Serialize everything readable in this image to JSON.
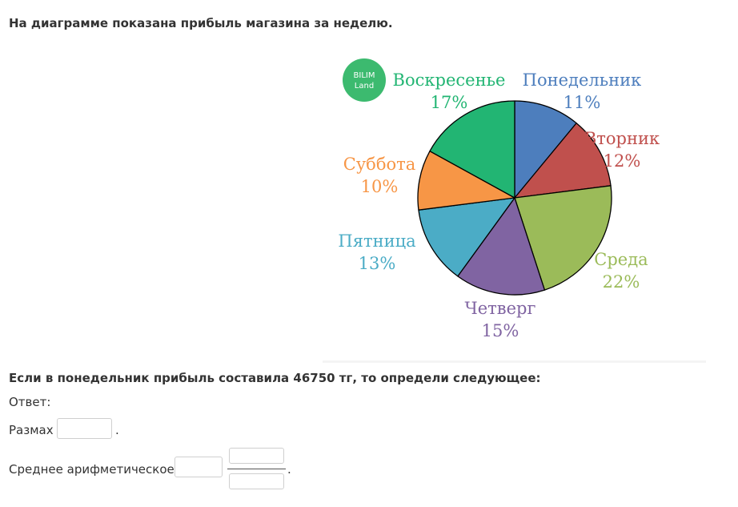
{
  "question": {
    "intro": "На диаграмме показана прибыль магазина за неделю.",
    "task": "Если в понедельник прибыль составила 46750 тг, то определи следующее:"
  },
  "logo": {
    "line1": "BILIM",
    "line2": "Land",
    "color": "#3cba6f"
  },
  "answer": {
    "label": "Ответ:",
    "range_label": "Размах",
    "range_suffix": ".",
    "mean_label": "Среднее арифметическое",
    "mean_suffix": "."
  },
  "chart_data": {
    "type": "pie",
    "title": "",
    "unit": "%",
    "start_direction": "top",
    "order": "clockwise",
    "slices": [
      {
        "label": "Понедельник",
        "value": 11,
        "display": "11%",
        "color": "#4d7ebd"
      },
      {
        "label": "Вторник",
        "value": 12,
        "display": "12%",
        "color": "#c0504d"
      },
      {
        "label": "Среда",
        "value": 22,
        "display": "22%",
        "color": "#9bbb59"
      },
      {
        "label": "Четверг",
        "value": 15,
        "display": "15%",
        "color": "#8064a2"
      },
      {
        "label": "Пятница",
        "value": 13,
        "display": "13%",
        "color": "#4bacc6"
      },
      {
        "label": "Суббота",
        "value": 10,
        "display": "10%",
        "color": "#f79646"
      },
      {
        "label": "Воскресенье",
        "value": 17,
        "display": "17%",
        "color": "#22b573"
      }
    ]
  }
}
